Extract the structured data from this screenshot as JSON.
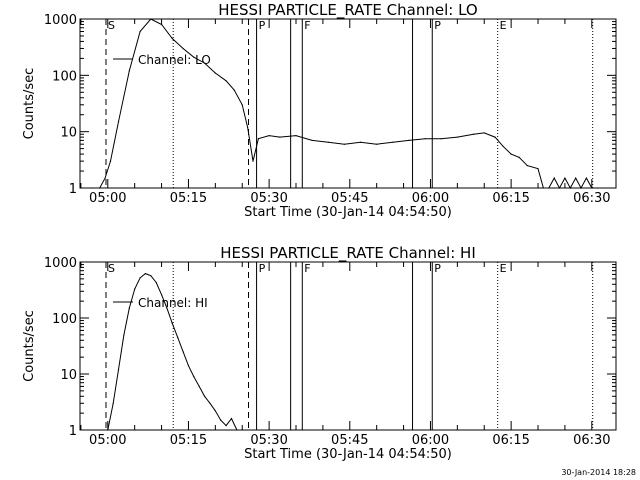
{
  "stamp": "30-Jan-2014 18:28",
  "chart_data": [
    {
      "type": "line",
      "title": "HESSI PARTICLE_RATE Channel: LO",
      "xlabel": "Start Time (30-Jan-14 04:54:50)",
      "ylabel": "Counts/sec",
      "yscale": "log",
      "ylim": [
        1,
        1000
      ],
      "xlim": [
        "04:54:50",
        "06:34:30"
      ],
      "xticks": [
        "05:00",
        "05:15",
        "05:30",
        "05:45",
        "06:00",
        "06:15",
        "06:30"
      ],
      "yticks": [
        "1",
        "10",
        "100",
        "1000"
      ],
      "legend": {
        "label": "Channel: LO",
        "placement": "top-left"
      },
      "grid": false,
      "series": [
        {
          "name": "Channel: LO",
          "x": [
            "04:55:00",
            "04:57:00",
            "04:58:30",
            "04:59:30",
            "05:00:30",
            "05:02:00",
            "05:04:00",
            "05:06:00",
            "05:08:00",
            "05:10:00",
            "05:12:00",
            "05:14:00",
            "05:16:00",
            "05:18:00",
            "05:20:00",
            "05:22:00",
            "05:23:30",
            "05:25:00",
            "05:26:00",
            "05:27:00",
            "05:28:00",
            "05:30:00",
            "05:32:00",
            "05:35:00",
            "05:38:00",
            "05:41:00",
            "05:44:00",
            "05:47:00",
            "05:50:00",
            "05:53:00",
            "05:56:00",
            "05:59:00",
            "06:02:00",
            "06:05:00",
            "06:08:00",
            "06:10:00",
            "06:12:00",
            "06:13:30",
            "06:15:00",
            "06:16:30",
            "06:18:00",
            "06:20:00",
            "06:21:00",
            "06:22:00",
            "06:23:00",
            "06:24:00",
            "06:25:00",
            "06:26:00",
            "06:27:00",
            "06:28:00",
            "06:29:00",
            "06:30:00",
            "06:31:00"
          ],
          "y": [
            1,
            1,
            1,
            1.5,
            3,
            15,
            120,
            600,
            1000,
            800,
            450,
            300,
            210,
            165,
            110,
            80,
            55,
            30,
            12,
            3,
            7.5,
            8.5,
            8,
            8.5,
            7,
            6.5,
            6,
            6.5,
            6,
            6.5,
            7,
            7.5,
            7.5,
            8,
            9,
            9.5,
            8,
            5.5,
            4,
            3.5,
            2.5,
            2.2,
            1,
            1,
            1.5,
            1,
            1.5,
            1,
            1.5,
            1,
            1.5,
            1,
            1
          ]
        }
      ],
      "annotations": [
        {
          "label": "S",
          "time": "04:59:40",
          "style": "dashed"
        },
        {
          "label": "",
          "time": "05:12:10",
          "style": "dotted"
        },
        {
          "label": "",
          "time": "05:26:10",
          "style": "dashed"
        },
        {
          "label": "P",
          "time": "05:27:40",
          "style": "solid"
        },
        {
          "label": "",
          "time": "05:34:00",
          "style": "solid"
        },
        {
          "label": "F",
          "time": "05:36:10",
          "style": "solid"
        },
        {
          "label": "",
          "time": "05:56:40",
          "style": "solid"
        },
        {
          "label": "P",
          "time": "06:00:20",
          "style": "solid"
        },
        {
          "label": "E",
          "time": "06:12:30",
          "style": "dotted"
        },
        {
          "label": "",
          "time": "06:30:10",
          "style": "dotted"
        }
      ]
    },
    {
      "type": "line",
      "title": "HESSI PARTICLE_RATE Channel: HI",
      "xlabel": "Start Time (30-Jan-14 04:54:50)",
      "ylabel": "Counts/sec",
      "yscale": "log",
      "ylim": [
        1,
        1000
      ],
      "xlim": [
        "04:54:50",
        "06:34:30"
      ],
      "xticks": [
        "05:00",
        "05:15",
        "05:30",
        "05:45",
        "06:00",
        "06:15",
        "06:30"
      ],
      "yticks": [
        "1",
        "10",
        "100",
        "1000"
      ],
      "legend": {
        "label": "Channel: HI",
        "placement": "top-left"
      },
      "grid": false,
      "series": [
        {
          "name": "Channel: HI",
          "x": [
            "05:00:00",
            "05:01:00",
            "05:02:00",
            "05:03:00",
            "05:04:00",
            "05:05:00",
            "05:06:00",
            "05:07:00",
            "05:08:00",
            "05:09:00",
            "05:10:00",
            "05:11:00",
            "05:12:00",
            "05:13:00",
            "05:14:00",
            "05:15:00",
            "05:16:00",
            "05:17:00",
            "05:18:00",
            "05:19:00",
            "05:20:00",
            "05:21:00",
            "05:22:00",
            "05:23:00",
            "05:24:00",
            "05:25:00"
          ],
          "y": [
            1,
            3,
            12,
            50,
            150,
            330,
            520,
            620,
            570,
            430,
            260,
            150,
            80,
            45,
            25,
            14,
            9,
            6,
            4,
            3,
            2.2,
            1.5,
            1.2,
            1.6,
            1,
            1
          ]
        }
      ],
      "annotations": [
        {
          "label": "S",
          "time": "04:59:40",
          "style": "dashed"
        },
        {
          "label": "",
          "time": "05:12:10",
          "style": "dotted"
        },
        {
          "label": "",
          "time": "05:26:10",
          "style": "dashed"
        },
        {
          "label": "P",
          "time": "05:27:40",
          "style": "solid"
        },
        {
          "label": "",
          "time": "05:34:00",
          "style": "solid"
        },
        {
          "label": "F",
          "time": "05:36:10",
          "style": "solid"
        },
        {
          "label": "",
          "time": "05:56:40",
          "style": "solid"
        },
        {
          "label": "P",
          "time": "06:00:20",
          "style": "solid"
        },
        {
          "label": "E",
          "time": "06:12:30",
          "style": "dotted"
        },
        {
          "label": "",
          "time": "06:30:10",
          "style": "dotted"
        }
      ]
    }
  ]
}
